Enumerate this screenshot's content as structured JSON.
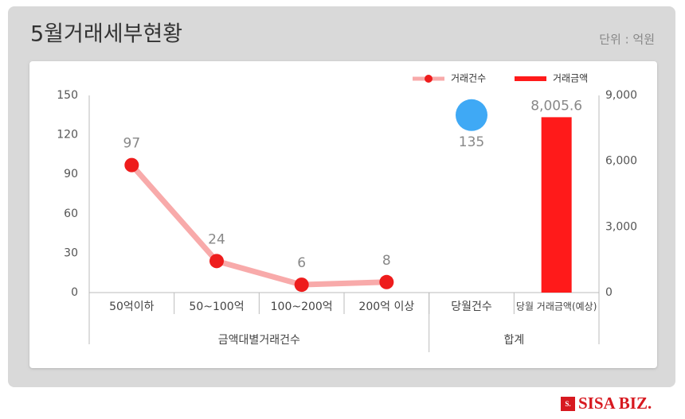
{
  "chart_data": {
    "type": "combo",
    "title": "5월거래세부현황",
    "unit": "단위 : 억원",
    "categories": [
      "50억이하",
      "50~100억",
      "100~200억",
      "200억 이상",
      "당월건수",
      "당월 거래금액(예상)"
    ],
    "groups": [
      {
        "label": "금액대별거래건수",
        "count": 4
      },
      {
        "label": "합계",
        "count": 2
      }
    ],
    "series": [
      {
        "name": "거래건수",
        "kind": "line",
        "color": "#ee1c1c",
        "line_color": "#f8aaaa",
        "values": [
          97,
          24,
          6,
          8,
          null,
          null
        ]
      },
      {
        "name": "거래금액",
        "kind": "bar",
        "axis": "y2",
        "color": "#ff1a1a",
        "values": [
          null,
          null,
          null,
          null,
          null,
          8005.6
        ],
        "value_labels": [
          null,
          null,
          null,
          null,
          null,
          "8,005.6"
        ]
      },
      {
        "kind": "bubble",
        "color": "#3fa9f5",
        "values": [
          null,
          null,
          null,
          null,
          135,
          null
        ]
      }
    ],
    "ylim": [
      0,
      150
    ],
    "yticks": [
      0,
      30,
      60,
      90,
      120,
      150
    ],
    "y2lim": [
      0,
      9000
    ],
    "y2ticks": [
      0,
      {
        "value": 3000,
        "label": "3,000"
      },
      {
        "value": 6000,
        "label": "6,000"
      },
      {
        "value": 9000,
        "label": "9,000"
      }
    ],
    "legend": "top-right"
  },
  "logo": {
    "mark": "S.",
    "text": "SISA BIZ."
  }
}
